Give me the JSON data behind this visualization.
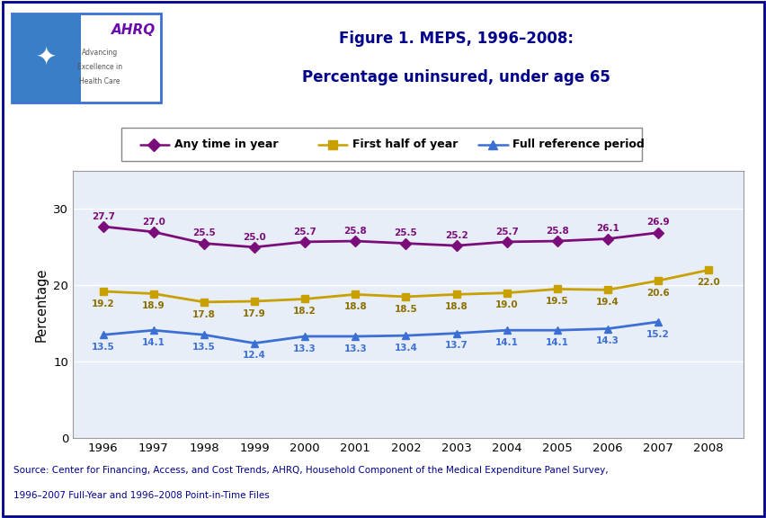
{
  "title_line1": "Figure 1. MEPS, 1996–2008:",
  "title_line2": "Percentage uninsured, under age 65",
  "any_time_years": [
    1996,
    1997,
    1998,
    1999,
    2000,
    2001,
    2002,
    2003,
    2004,
    2005,
    2006,
    2007
  ],
  "any_time_vals": [
    27.7,
    27.0,
    25.5,
    25.0,
    25.7,
    25.8,
    25.5,
    25.2,
    25.7,
    25.8,
    26.1,
    26.9
  ],
  "first_half_years": [
    1996,
    1997,
    1998,
    1999,
    2000,
    2001,
    2002,
    2003,
    2004,
    2005,
    2006,
    2007,
    2008
  ],
  "first_half_vals": [
    19.2,
    18.9,
    17.8,
    17.9,
    18.2,
    18.8,
    18.5,
    18.8,
    19.0,
    19.5,
    19.4,
    20.6,
    22.0
  ],
  "full_ref_years": [
    1996,
    1997,
    1998,
    1999,
    2000,
    2001,
    2002,
    2003,
    2004,
    2005,
    2006,
    2007
  ],
  "full_ref_vals": [
    13.5,
    14.1,
    13.5,
    12.4,
    13.3,
    13.3,
    13.4,
    13.7,
    14.1,
    14.1,
    14.3,
    15.2
  ],
  "any_time_color": "#7B0D7B",
  "first_half_color": "#C8A000",
  "full_ref_color": "#3C6FD4",
  "ylabel": "Percentage",
  "ylim": [
    0,
    35
  ],
  "yticks": [
    0,
    10,
    20,
    30
  ],
  "plot_bg_color": "#E8EEF8",
  "title_color": "#00008B",
  "dark_blue": "#00008B",
  "legend_labels": [
    "Any time in year",
    "First half of year",
    "Full reference period"
  ],
  "source_text1": "Source: Center for Financing, Access, and Cost Trends, AHRQ, Household Component of the Medical Expenditure Panel Survey,",
  "source_text2": "1996–2007 Full-Year and 1996–2008 Point-in-Time Files",
  "outer_border_color": "#00008B",
  "logo_border_color": "#3C6FD4"
}
